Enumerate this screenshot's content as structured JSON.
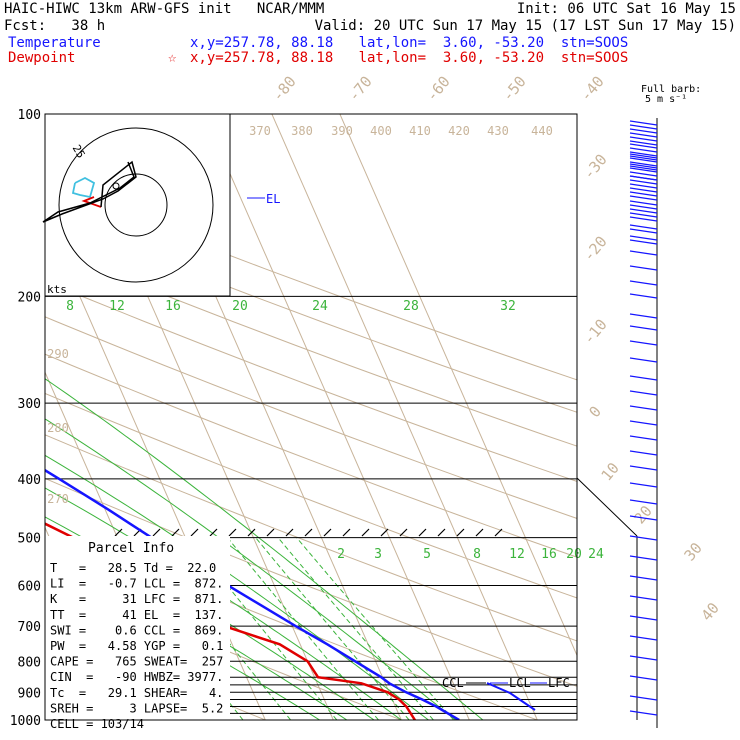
{
  "header": {
    "line1_left": "HAIC-HIWC 13km ARW-GFS init   NCAR/MMM",
    "line1_right": "Init: 06 UTC Sat 16 May 15",
    "line2_left": "Fcst:   38 h",
    "line2_right": "Valid: 20 UTC Sun 17 May 15 (17 LST Sun 17 May 15)",
    "temp_label": "Temperature",
    "temp_info": "x,y=257.78, 88.18   lat,lon=  3.60, -53.20  stn=SOOS",
    "dew_label": "Dewpoint",
    "dew_info": "x,y=257.78, 88.18   lat,lon=  3.60, -53.20  stn=SOOS",
    "star": "☆"
  },
  "barb_legend": {
    "line1": "Full barb:",
    "line2": "5 m s⁻¹"
  },
  "hodograph": {
    "ring_label": "25",
    "units": "kts"
  },
  "parcel": {
    "title": "Parcel Info",
    "rows": [
      "T   =   28.5 Td =  22.0",
      "LI  =   -0.7 LCL =  872.",
      "K   =     31 LFC =  871.",
      "TT  =     41 EL  =  137.",
      "SWI =    0.6 CCL =  869.",
      "PW  =   4.58 YGP =   0.1",
      "CAPE =   765 SWEAT=  257",
      "CIN  =   -90 HWBZ= 3977.",
      "Tc  =   29.1 SHEAR=   4.",
      "SREH =     3 LAPSE=  5.2",
      "CELL = 103/14"
    ]
  },
  "level_labels": {
    "el": "EL",
    "ccl": "CCL",
    "lcl": "LCL",
    "lfc": "LFC"
  },
  "colors": {
    "temperature": "#1515ff",
    "dewpoint": "#e00000",
    "adiabat": "#c8b49a",
    "mixing": "#3cb43c"
  },
  "chart_data": {
    "type": "line",
    "y_axis": {
      "scale": "log",
      "label": "Pressure (hPa)",
      "ticks": [
        100,
        200,
        300,
        400,
        500,
        600,
        700,
        800,
        900,
        1000
      ],
      "reversed": true
    },
    "isotherm_labels": [
      "-80",
      "-70",
      "-60",
      "-50",
      "-40",
      "-30",
      "-20",
      "-10",
      "0",
      "10",
      "20",
      "30",
      "40"
    ],
    "theta_labels": [
      "370",
      "380",
      "390",
      "400",
      "410",
      "420",
      "430",
      "440"
    ],
    "theta_left_labels": [
      "290",
      "280",
      "270"
    ],
    "mixing_labels_top": [
      "8",
      "12",
      "16",
      "20",
      "24",
      "28",
      "32"
    ],
    "mixing_labels_low": [
      "2",
      "3",
      "5",
      "8",
      "12",
      "16",
      "20",
      "24"
    ],
    "series": [
      {
        "name": "Temperature",
        "values": [
          [
            1000,
            28.5
          ],
          [
            950,
            26.0
          ],
          [
            925,
            24.4
          ],
          [
            900,
            22.5
          ],
          [
            870,
            20.6
          ],
          [
            850,
            19.8
          ],
          [
            800,
            17.0
          ],
          [
            750,
            14.0
          ],
          [
            700,
            10.5
          ],
          [
            650,
            7.0
          ],
          [
            600,
            3.2
          ],
          [
            550,
            -0.6
          ],
          [
            500,
            -5.0
          ],
          [
            450,
            -9.5
          ],
          [
            400,
            -14.8
          ],
          [
            350,
            -21.0
          ],
          [
            300,
            -28.5
          ],
          [
            250,
            -37.5
          ],
          [
            200,
            -48.5
          ],
          [
            170,
            -57.0
          ],
          [
            150,
            -63.5
          ],
          [
            130,
            -71.0
          ],
          [
            115,
            -75.5
          ],
          [
            100,
            -76.0
          ]
        ]
      },
      {
        "name": "Dewpoint",
        "values": [
          [
            1000,
            22.0
          ],
          [
            950,
            21.6
          ],
          [
            925,
            21.0
          ],
          [
            900,
            19.8
          ],
          [
            870,
            16.5
          ],
          [
            850,
            10.5
          ],
          [
            800,
            10.0
          ],
          [
            750,
            7.0
          ],
          [
            700,
            0.0
          ],
          [
            650,
            -9.0
          ],
          [
            600,
            -14.0
          ],
          [
            550,
            -15.5
          ],
          [
            500,
            -16.5
          ],
          [
            450,
            -23.0
          ],
          [
            420,
            -22.5
          ],
          [
            400,
            -25.0
          ],
          [
            350,
            -31.5
          ],
          [
            320,
            -34.0
          ],
          [
            300,
            -37.5
          ],
          [
            270,
            -42.5
          ],
          [
            250,
            -43.5
          ],
          [
            230,
            -49.5
          ],
          [
            200,
            -55.5
          ],
          [
            185,
            -60.0
          ],
          [
            170,
            -71.5
          ],
          [
            155,
            -80.0
          ],
          [
            140,
            -81.0
          ],
          [
            130,
            -84.0
          ],
          [
            120,
            -88.5
          ],
          [
            110,
            -90.5
          ],
          [
            100,
            -91.0
          ]
        ]
      }
    ]
  }
}
